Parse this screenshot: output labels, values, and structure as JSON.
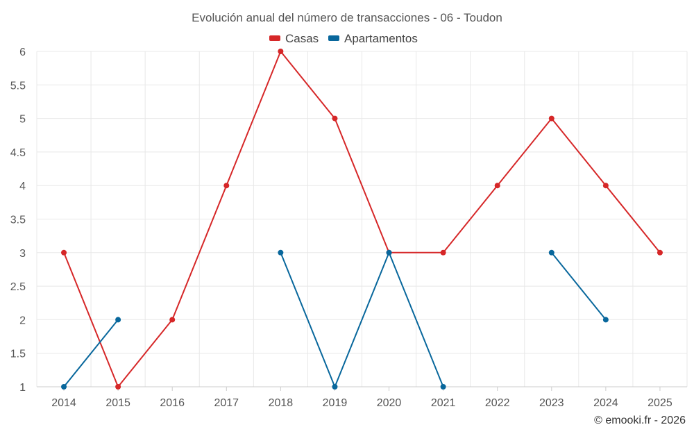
{
  "chart_data": {
    "type": "line",
    "title": "Evolución anual del número de transacciones - 06 - Toudon",
    "categories": [
      "2014",
      "2015",
      "2016",
      "2017",
      "2018",
      "2019",
      "2020",
      "2021",
      "2022",
      "2023",
      "2024",
      "2025"
    ],
    "series": [
      {
        "name": "Casas",
        "color": "#d62728",
        "values": [
          3,
          1,
          2,
          4,
          6,
          5,
          3,
          3,
          4,
          5,
          4,
          3
        ]
      },
      {
        "name": "Apartamentos",
        "color": "#08679c",
        "values": [
          1,
          2,
          null,
          null,
          3,
          1,
          3,
          1,
          null,
          3,
          2,
          null
        ]
      }
    ],
    "ylim": [
      1,
      6
    ],
    "yticks": [
      "1",
      "1.5",
      "2",
      "2.5",
      "3",
      "3.5",
      "4",
      "4.5",
      "5",
      "5.5",
      "6"
    ],
    "xlabel": "",
    "ylabel": "",
    "grid": true,
    "legend": "top-center"
  },
  "credit": "© emooki.fr - 2026"
}
